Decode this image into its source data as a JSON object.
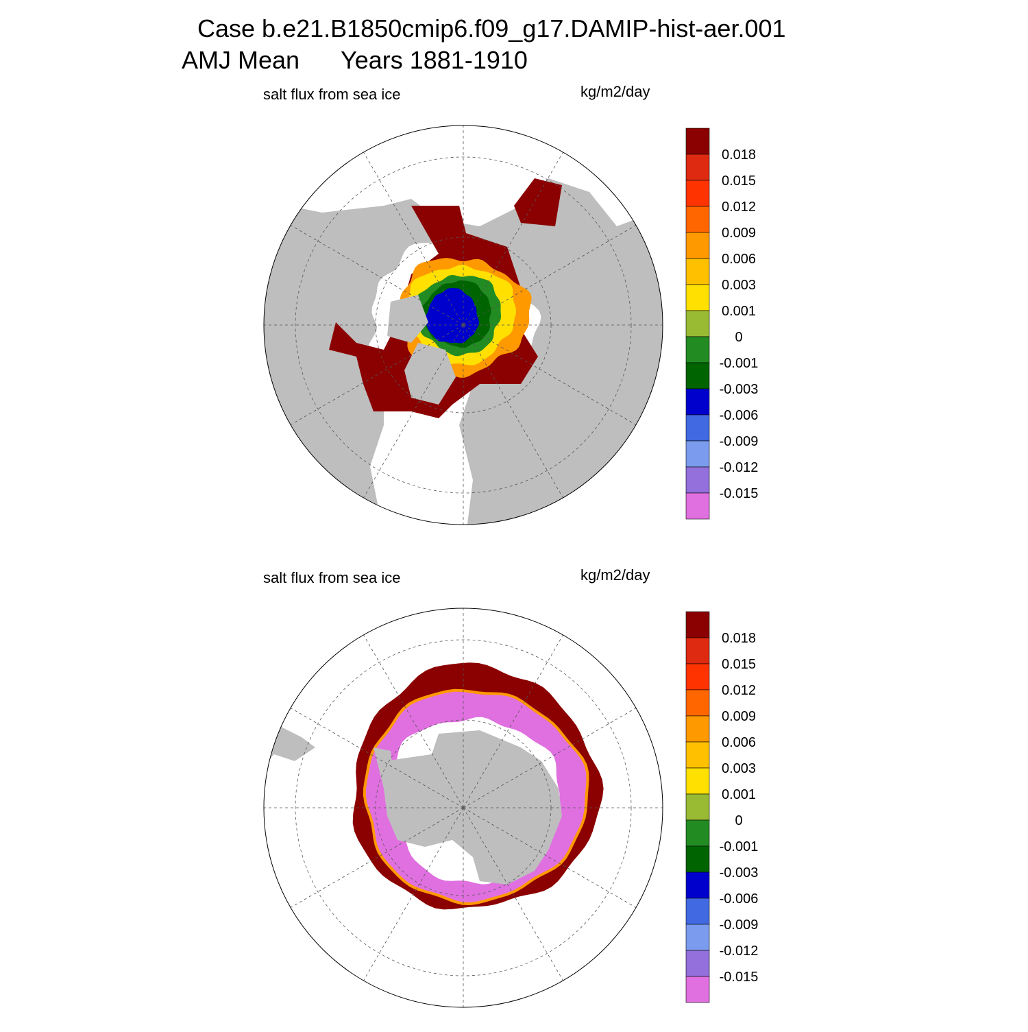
{
  "header": {
    "title": "Case b.e21.B1850cmip6.f09_g17.DAMIP-hist-aer.001",
    "season": "AMJ Mean",
    "years": "Years 1881-1910"
  },
  "panels": [
    {
      "label": "salt flux from sea ice",
      "units": "kg/m2/day"
    },
    {
      "label": "salt flux from sea ice",
      "units": "kg/m2/day"
    }
  ],
  "colorbar": {
    "colors": [
      "#8b0000",
      "#dd2a10",
      "#ff3300",
      "#ff6600",
      "#ff9900",
      "#ffc000",
      "#ffe000",
      "#99bb33",
      "#228b22",
      "#006400",
      "#0000cd",
      "#4169e1",
      "#7b9cee",
      "#9370db",
      "#e070e0"
    ],
    "labels": [
      "0.018",
      "0.015",
      "0.012",
      "0.009",
      "0.006",
      "0.003",
      "0.001",
      "0",
      "-0.001",
      "-0.003",
      "-0.006",
      "-0.009",
      "-0.012",
      "-0.015"
    ]
  }
}
